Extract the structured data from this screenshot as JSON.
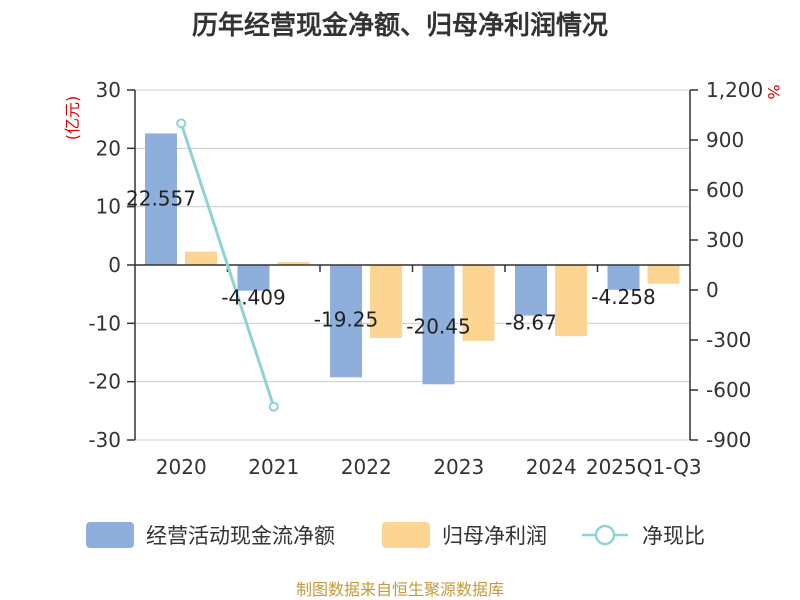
{
  "title": "历年经营现金净额、归母净利润情况",
  "left_unit": "(亿元)",
  "right_unit": "%",
  "source": "制图数据来自恒生聚源数据库",
  "colors": {
    "cash": "#8eaedb",
    "profit": "#fdd592",
    "ratio": "#8fd3d8"
  },
  "chart_data": {
    "type": "bar",
    "categories": [
      "2020",
      "2021",
      "2022",
      "2023",
      "2024",
      "2025Q1-Q3"
    ],
    "series": [
      {
        "name": "经营活动现金流净额",
        "type": "bar",
        "axis": "left",
        "values": [
          22.557,
          -4.409,
          -19.25,
          -20.45,
          -8.67,
          -4.258
        ],
        "labels": [
          "22.557",
          "-4.409",
          "-19.25",
          "-20.45",
          "-8.67",
          "-4.258"
        ]
      },
      {
        "name": "归母净利润",
        "type": "bar",
        "axis": "left",
        "values": [
          2.3,
          0.5,
          -12.5,
          -13.0,
          -12.2,
          -3.2
        ]
      },
      {
        "name": "净现比",
        "type": "line",
        "axis": "right",
        "values": [
          1000,
          -700,
          null,
          null,
          null,
          null
        ]
      }
    ],
    "y_left": {
      "min": -30,
      "max": 30,
      "ticks": [
        "30",
        "20",
        "10",
        "0",
        "-10",
        "-20",
        "-30"
      ]
    },
    "y_right": {
      "min": -900,
      "max": 1200,
      "ticks": [
        "1,200",
        "900",
        "600",
        "300",
        "0",
        "-300",
        "-600",
        "-900"
      ]
    },
    "grid": true,
    "legend": "bottom"
  }
}
